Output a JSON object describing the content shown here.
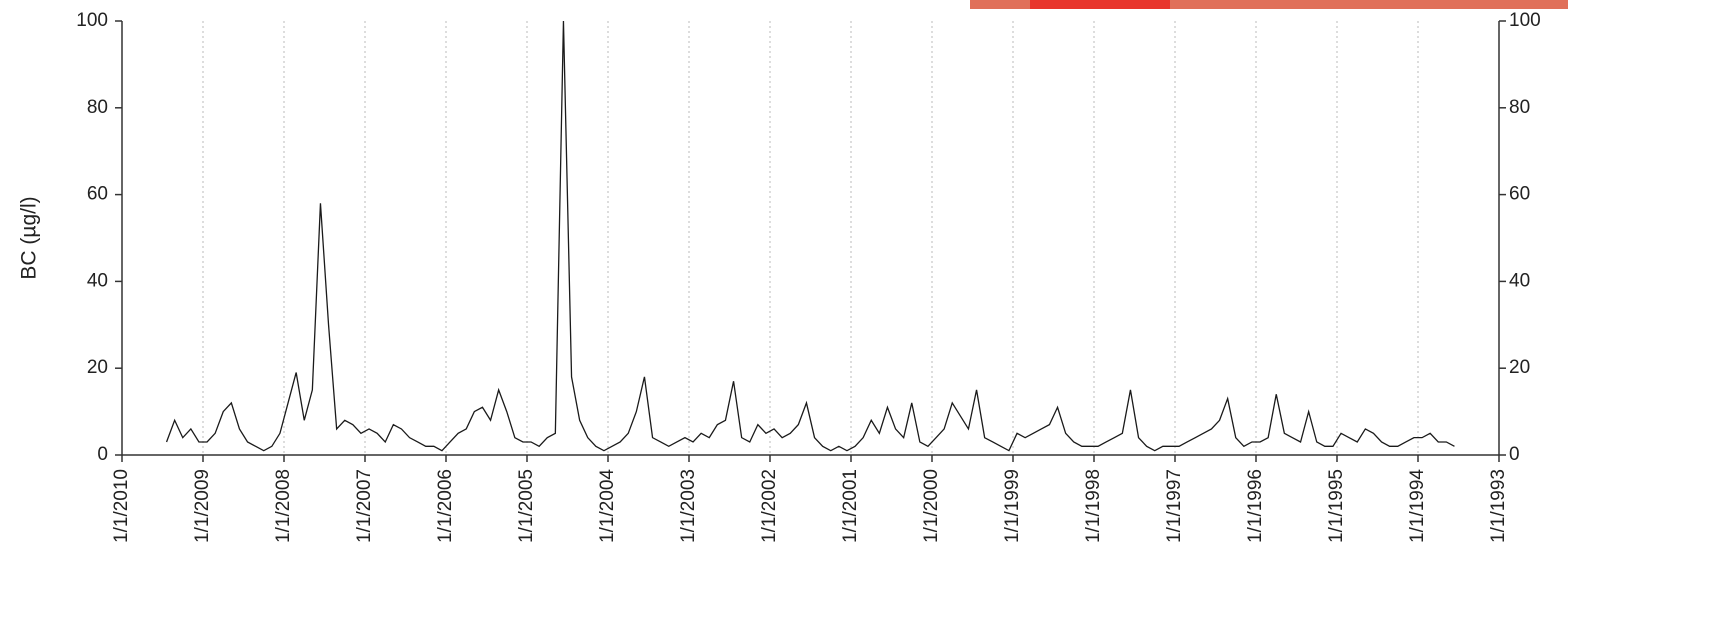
{
  "chart_data": {
    "type": "line",
    "y_label": "BC (µg/l)",
    "x": [
      2009.45,
      2009.35,
      2009.25,
      2009.15,
      2009.05,
      2008.95,
      2008.85,
      2008.75,
      2008.65,
      2008.55,
      2008.45,
      2008.35,
      2008.25,
      2008.15,
      2008.05,
      2007.95,
      2007.85,
      2007.75,
      2007.65,
      2007.55,
      2007.45,
      2007.35,
      2007.25,
      2007.15,
      2007.05,
      2006.95,
      2006.85,
      2006.75,
      2006.65,
      2006.55,
      2006.45,
      2006.35,
      2006.25,
      2006.15,
      2006.05,
      2005.95,
      2005.85,
      2005.75,
      2005.65,
      2005.55,
      2005.45,
      2005.35,
      2005.25,
      2005.15,
      2005.05,
      2004.95,
      2004.85,
      2004.75,
      2004.65,
      2004.55,
      2004.45,
      2004.35,
      2004.25,
      2004.15,
      2004.05,
      2003.95,
      2003.85,
      2003.75,
      2003.65,
      2003.55,
      2003.45,
      2003.35,
      2003.25,
      2003.15,
      2003.05,
      2002.95,
      2002.85,
      2002.75,
      2002.65,
      2002.55,
      2002.45,
      2002.35,
      2002.25,
      2002.15,
      2002.05,
      2001.95,
      2001.85,
      2001.75,
      2001.65,
      2001.55,
      2001.45,
      2001.35,
      2001.25,
      2001.15,
      2001.05,
      2000.95,
      2000.85,
      2000.75,
      2000.65,
      2000.55,
      2000.45,
      2000.35,
      2000.25,
      2000.15,
      2000.05,
      1999.95,
      1999.85,
      1999.75,
      1999.65,
      1999.55,
      1999.45,
      1999.35,
      1999.25,
      1999.15,
      1999.05,
      1998.95,
      1998.85,
      1998.75,
      1998.65,
      1998.55,
      1998.45,
      1998.35,
      1998.25,
      1998.15,
      1998.05,
      1997.95,
      1997.85,
      1997.75,
      1997.65,
      1997.55,
      1997.45,
      1997.35,
      1997.25,
      1997.15,
      1997.05,
      1996.95,
      1996.85,
      1996.75,
      1996.65,
      1996.55,
      1996.45,
      1996.35,
      1996.25,
      1996.15,
      1996.05,
      1995.95,
      1995.85,
      1995.75,
      1995.65,
      1995.55,
      1995.45,
      1995.35,
      1995.25,
      1995.15,
      1995.05,
      1994.95,
      1994.85,
      1994.75,
      1994.65,
      1994.55,
      1994.45,
      1994.35,
      1994.25,
      1994.15,
      1994.05,
      1993.95,
      1993.85,
      1993.75,
      1993.65,
      1993.55
    ],
    "series": [
      {
        "color": "#1a1a1a",
        "values": [
          3,
          8,
          4,
          6,
          3,
          3,
          5,
          10,
          12,
          6,
          3,
          2,
          1,
          2,
          5,
          12,
          19,
          8,
          15,
          58,
          30,
          6,
          8,
          7,
          5,
          6,
          5,
          3,
          7,
          6,
          4,
          3,
          2,
          2,
          1,
          3,
          5,
          6,
          10,
          11,
          8,
          15,
          10,
          4,
          3,
          3,
          2,
          4,
          5,
          100,
          18,
          8,
          4,
          2,
          1,
          2,
          3,
          5,
          10,
          18,
          4,
          3,
          2,
          3,
          4,
          3,
          5,
          4,
          7,
          8,
          17,
          4,
          3,
          7,
          5,
          6,
          4,
          5,
          7,
          12,
          4,
          2,
          1,
          2,
          1,
          2,
          4,
          8,
          5,
          11,
          6,
          4,
          12,
          3,
          2,
          4,
          6,
          12,
          9,
          6,
          15,
          4,
          3,
          2,
          1,
          5,
          4,
          5,
          6,
          7,
          11,
          5,
          3,
          2,
          2,
          2,
          3,
          4,
          5,
          15,
          4,
          2,
          1,
          2,
          2,
          2,
          3,
          4,
          5,
          6,
          8,
          13,
          4,
          2,
          3,
          3,
          4,
          14,
          5,
          4,
          3,
          10,
          3,
          2,
          2,
          5,
          4,
          3,
          6,
          5,
          3,
          2,
          2,
          3,
          4,
          4,
          5,
          3,
          3,
          2
        ]
      }
    ],
    "xlim": [
      2010,
      1993
    ],
    "xticks": [
      {
        "value": 2010,
        "label": "1/1/2010"
      },
      {
        "value": 2009,
        "label": "1/1/2009"
      },
      {
        "value": 2008,
        "label": "1/1/2008"
      },
      {
        "value": 2007,
        "label": "1/1/2007"
      },
      {
        "value": 2006,
        "label": "1/1/2006"
      },
      {
        "value": 2005,
        "label": "1/1/2005"
      },
      {
        "value": 2004,
        "label": "1/1/2004"
      },
      {
        "value": 2003,
        "label": "1/1/2003"
      },
      {
        "value": 2002,
        "label": "1/1/2002"
      },
      {
        "value": 2001,
        "label": "1/1/2001"
      },
      {
        "value": 2000,
        "label": "1/1/2000"
      },
      {
        "value": 1999,
        "label": "1/1/1999"
      },
      {
        "value": 1998,
        "label": "1/1/1998"
      },
      {
        "value": 1997,
        "label": "1/1/1997"
      },
      {
        "value": 1996,
        "label": "1/1/1996"
      },
      {
        "value": 1995,
        "label": "1/1/1995"
      },
      {
        "value": 1994,
        "label": "1/1/1994"
      },
      {
        "value": 1993,
        "label": "1/1/1993"
      }
    ],
    "ylim": [
      0,
      100
    ],
    "yticks": [
      0,
      20,
      40,
      60,
      80,
      100
    ],
    "y2lim": [
      0,
      100
    ],
    "y2ticks": [
      0,
      20,
      40,
      60,
      80,
      100
    ],
    "grid": "x"
  }
}
